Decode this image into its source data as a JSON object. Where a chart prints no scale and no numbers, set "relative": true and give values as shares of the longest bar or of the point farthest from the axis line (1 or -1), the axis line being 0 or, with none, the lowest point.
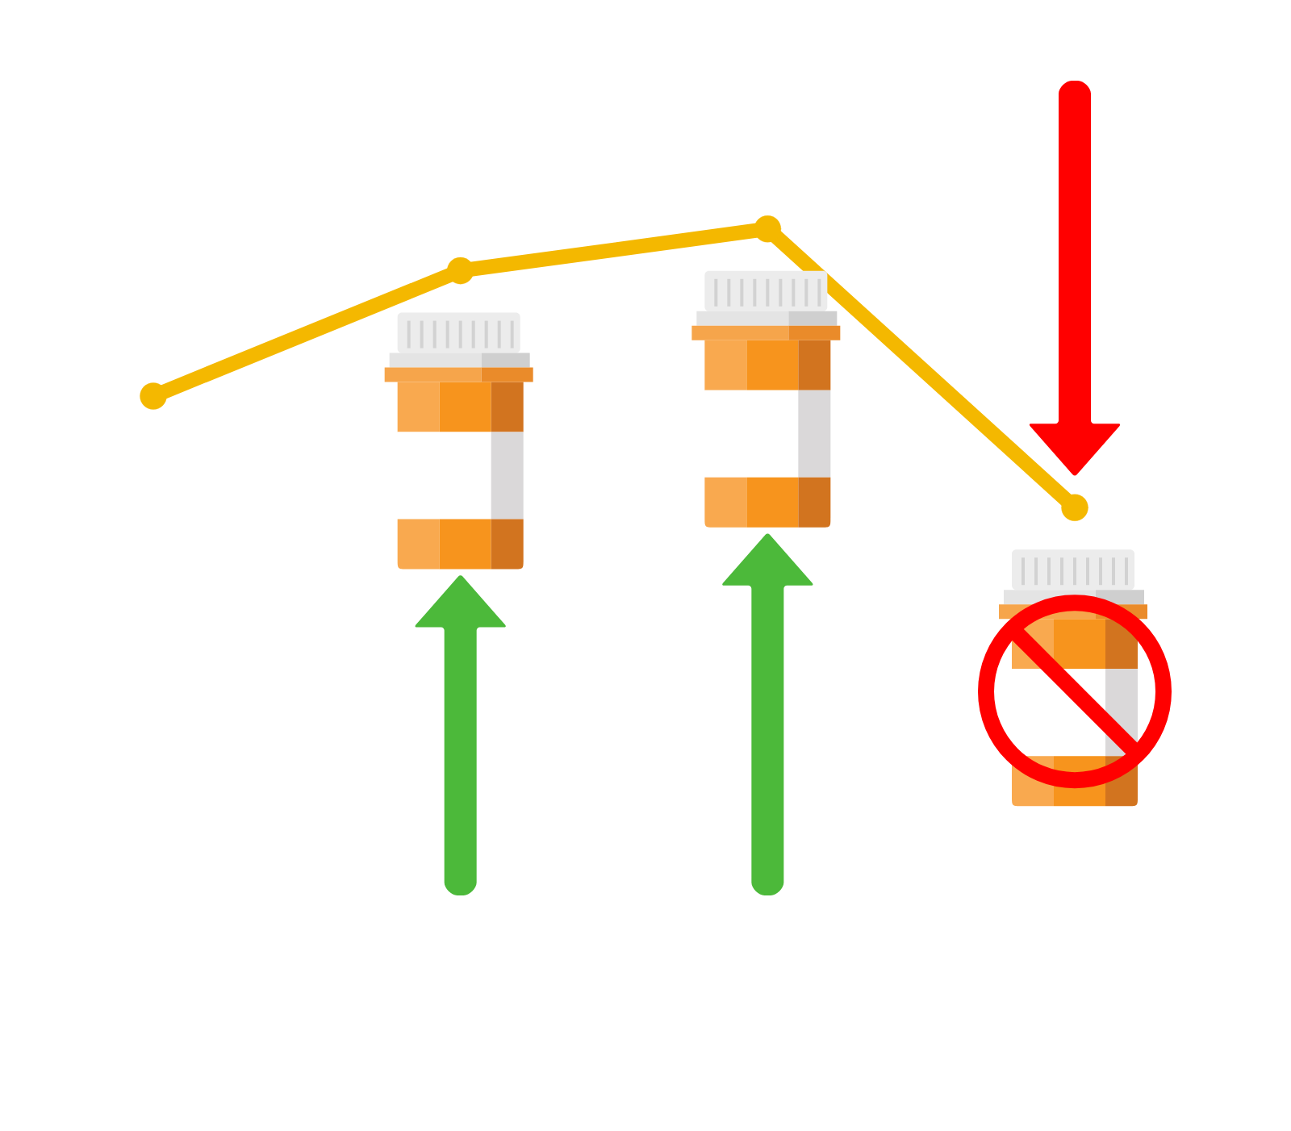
{
  "chart_data": {
    "type": "line",
    "relative": true,
    "categories": [
      null,
      null,
      null,
      null
    ],
    "series": [
      {
        "color": "#f4b800",
        "values": [
          0.4,
          0.85,
          1,
          0
        ]
      }
    ],
    "marker": "circle",
    "line_style": "solid"
  }
}
